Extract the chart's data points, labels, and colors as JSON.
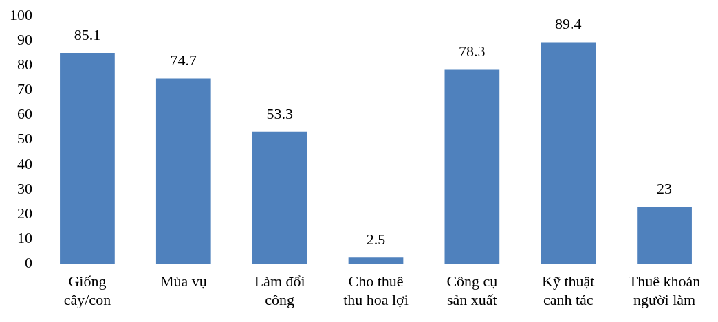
{
  "chart_data": {
    "type": "bar",
    "categories": [
      "Giống cây/con",
      "Mùa vụ",
      "Làm đổi công",
      "Cho thuê thu hoa lợi",
      "Công cụ sản xuất",
      "Kỹ thuật canh tác",
      "Thuê khoán người làm"
    ],
    "values": [
      85.1,
      74.7,
      53.3,
      2.5,
      78.3,
      89.4,
      23
    ],
    "color": "#4f81bd",
    "ylim": [
      0,
      100
    ],
    "yticks": [
      0,
      10,
      20,
      30,
      40,
      50,
      60,
      70,
      80,
      90,
      100
    ],
    "grid": false,
    "legend": false,
    "data_labels": true
  }
}
